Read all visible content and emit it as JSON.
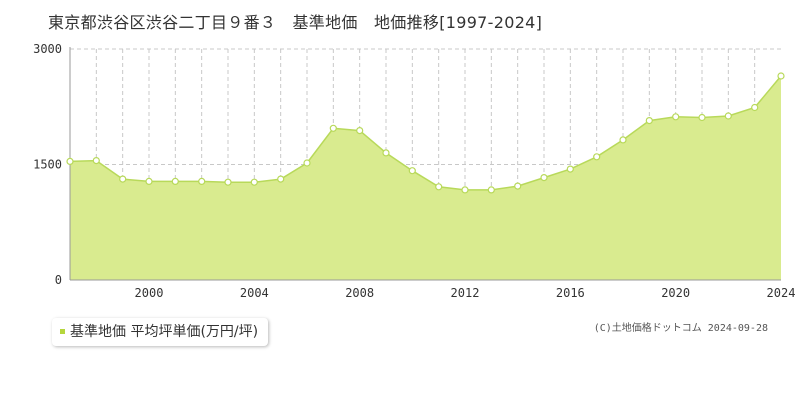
{
  "chart_data": {
    "type": "area",
    "title": "東京都渋谷区渋谷二丁目９番３　基準地価　地価推移[1997-2024]",
    "x": [
      1997,
      1998,
      1999,
      2000,
      2001,
      2002,
      2003,
      2004,
      2005,
      2006,
      2007,
      2008,
      2009,
      2010,
      2011,
      2012,
      2013,
      2014,
      2015,
      2016,
      2017,
      2018,
      2019,
      2020,
      2021,
      2022,
      2023,
      2024
    ],
    "series": [
      {
        "name": "基準地価 平均坪単価(万円/坪)",
        "values": [
          1540,
          1550,
          1310,
          1280,
          1280,
          1280,
          1270,
          1270,
          1310,
          1520,
          1970,
          1940,
          1650,
          1420,
          1210,
          1170,
          1170,
          1220,
          1330,
          1440,
          1600,
          1820,
          2070,
          2120,
          2110,
          2130,
          2240,
          2650
        ]
      }
    ],
    "xlim": [
      1997,
      2024
    ],
    "ylim": [
      0,
      3000
    ],
    "y_ticks": [
      "0",
      "1500",
      "3000"
    ],
    "x_ticks": [
      "2000",
      "2004",
      "2008",
      "2012",
      "2016",
      "2020",
      "2024"
    ],
    "grid": true,
    "legend_position": "bottom-left",
    "colors": {
      "fill": "#d9eb8f",
      "line": "#b8d95a",
      "point_fill": "#ffffff",
      "grid": "#c8c8c8",
      "axis": "#999999",
      "legend_marker": "#b5d63c"
    }
  },
  "legend": {
    "label": "基準地価 平均坪単価(万円/坪)"
  },
  "copyright": "(C)土地価格ドットコム 2024-09-28"
}
